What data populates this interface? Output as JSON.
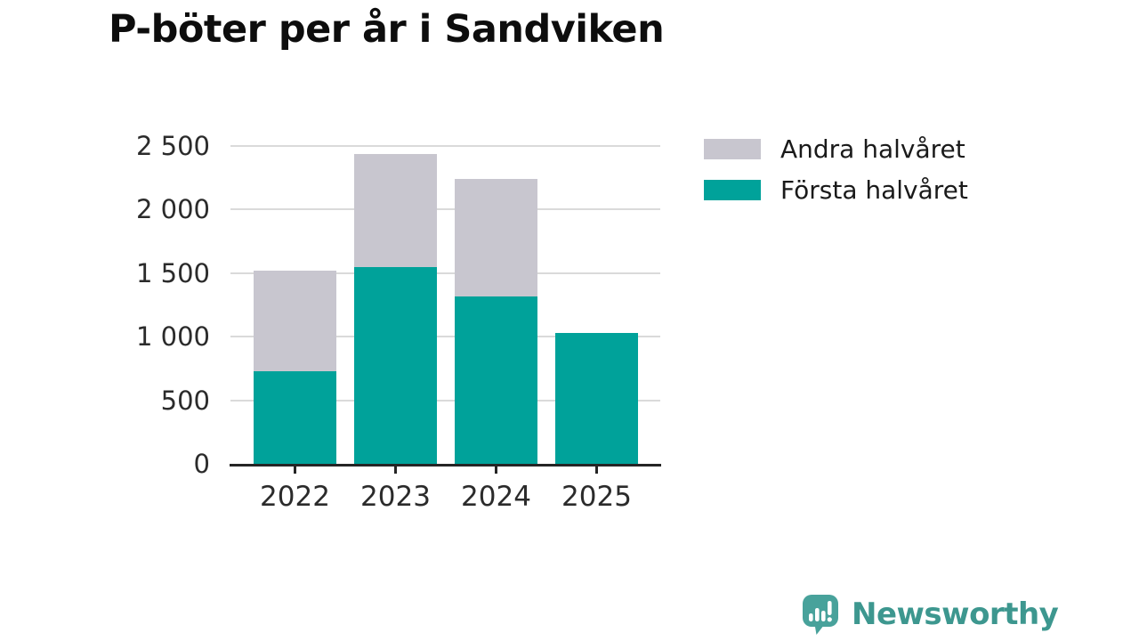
{
  "title": "P-böter per år i Sandviken",
  "colors": {
    "first_half": "#00a29a",
    "second_half": "#c8c6cf",
    "gridline": "#dadada",
    "axis": "#252525",
    "tick_text": "#2b2b2b",
    "brand_teal": "#3d978f",
    "brand_icon_teal": "#48a29b"
  },
  "legend": [
    {
      "label": "Andra halvåret",
      "color": "#c8c6cf"
    },
    {
      "label": "Första halvåret",
      "color": "#00a29a"
    }
  ],
  "footer": {
    "brand_name": "Newsworthy",
    "brand_icon": "speech-bubble-bar-chart-icon"
  },
  "chart_data": {
    "type": "bar",
    "stacked": true,
    "title": "P-böter per år i Sandviken",
    "categories": [
      "2022",
      "2023",
      "2024",
      "2025"
    ],
    "series": [
      {
        "name": "Första halvåret",
        "color": "#00a29a",
        "values": [
          730,
          1550,
          1320,
          1030
        ]
      },
      {
        "name": "Andra halvåret",
        "color": "#c8c6cf",
        "values": [
          790,
          890,
          920,
          0
        ]
      }
    ],
    "totals": [
      1520,
      2440,
      2240,
      1030
    ],
    "xlabel": "",
    "ylabel": "",
    "ylim": [
      0,
      2500
    ],
    "ytick_interval": 500,
    "ytick_values": [
      0,
      500,
      1000,
      1500,
      2000,
      2500
    ],
    "ytick_labels": [
      "0",
      "500",
      "1 000",
      "1 500",
      "2 000",
      "2 500"
    ],
    "grid": true,
    "legend_position": "top-right"
  }
}
